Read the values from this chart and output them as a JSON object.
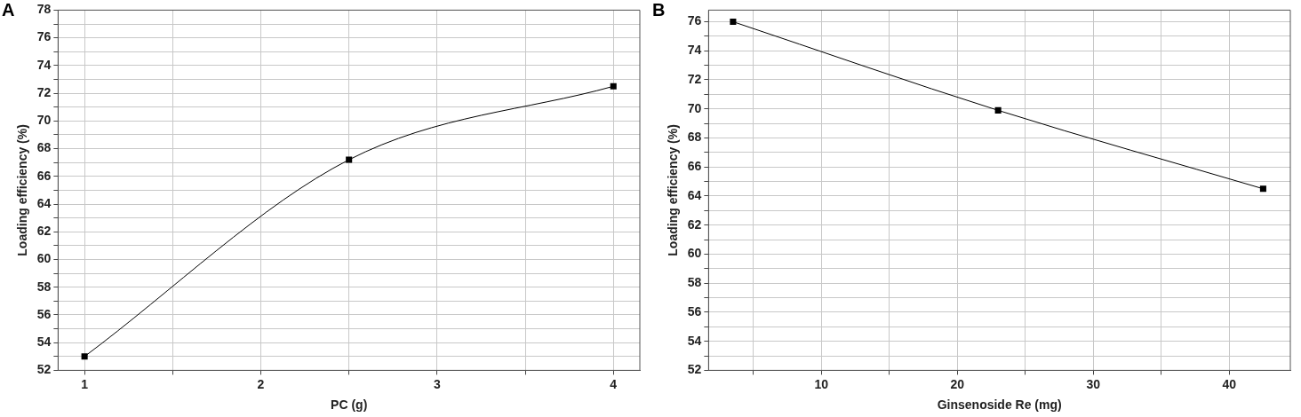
{
  "chart_data": [
    {
      "type": "line",
      "title": "A",
      "xlabel": "PC (g)",
      "ylabel": "Loading efficiency (%)",
      "x": [
        1,
        2.5,
        4
      ],
      "series": [
        {
          "color": "#000000",
          "values": [
            53.0,
            67.2,
            72.5
          ]
        }
      ],
      "xlim": [
        0.85,
        4.15
      ],
      "xticks": [
        1,
        {
          "value": 1.5,
          "label": null
        },
        2,
        {
          "value": 2.5,
          "label": null
        },
        3,
        {
          "value": 3.5,
          "label": null
        },
        4
      ],
      "ylim": [
        52,
        78
      ],
      "yticks": [
        52,
        {
          "value": 53,
          "label": null
        },
        54,
        {
          "value": 55,
          "label": null
        },
        56,
        {
          "value": 57,
          "label": null
        },
        58,
        {
          "value": 59,
          "label": null
        },
        60,
        {
          "value": 61,
          "label": null
        },
        62,
        {
          "value": 63,
          "label": null
        },
        64,
        {
          "value": 65,
          "label": null
        },
        66,
        {
          "value": 67,
          "label": null
        },
        68,
        {
          "value": 69,
          "label": null
        },
        70,
        {
          "value": 71,
          "label": null
        },
        72,
        {
          "value": 73,
          "label": null
        },
        74,
        {
          "value": 75,
          "label": null
        },
        76,
        {
          "value": 77,
          "label": null
        },
        78
      ],
      "grid": true,
      "marker": "square",
      "line_style": "solid"
    },
    {
      "type": "line",
      "title": "B",
      "xlabel": "Ginsenoside Re (mg)",
      "ylabel": "Loading efficiency (%)",
      "x": [
        3.5,
        23,
        42.5
      ],
      "series": [
        {
          "color": "#000000",
          "values": [
            76.0,
            69.9,
            64.5
          ]
        }
      ],
      "xlim": [
        1.7,
        44.5
      ],
      "xticks": [
        {
          "value": 5,
          "label": null
        },
        10,
        {
          "value": 15,
          "label": null
        },
        20,
        {
          "value": 25,
          "label": null
        },
        30,
        {
          "value": 35,
          "label": null
        },
        40
      ],
      "ylim": [
        52,
        76.8
      ],
      "yticks": [
        52,
        {
          "value": 53,
          "label": null
        },
        54,
        {
          "value": 55,
          "label": null
        },
        56,
        {
          "value": 57,
          "label": null
        },
        58,
        {
          "value": 59,
          "label": null
        },
        60,
        {
          "value": 61,
          "label": null
        },
        62,
        {
          "value": 63,
          "label": null
        },
        64,
        {
          "value": 65,
          "label": null
        },
        66,
        {
          "value": 67,
          "label": null
        },
        68,
        {
          "value": 69,
          "label": null
        },
        70,
        {
          "value": 71,
          "label": null
        },
        72,
        {
          "value": 73,
          "label": null
        },
        74,
        {
          "value": 75,
          "label": null
        },
        76
      ],
      "grid": true,
      "marker": "square",
      "line_style": "solid"
    }
  ]
}
